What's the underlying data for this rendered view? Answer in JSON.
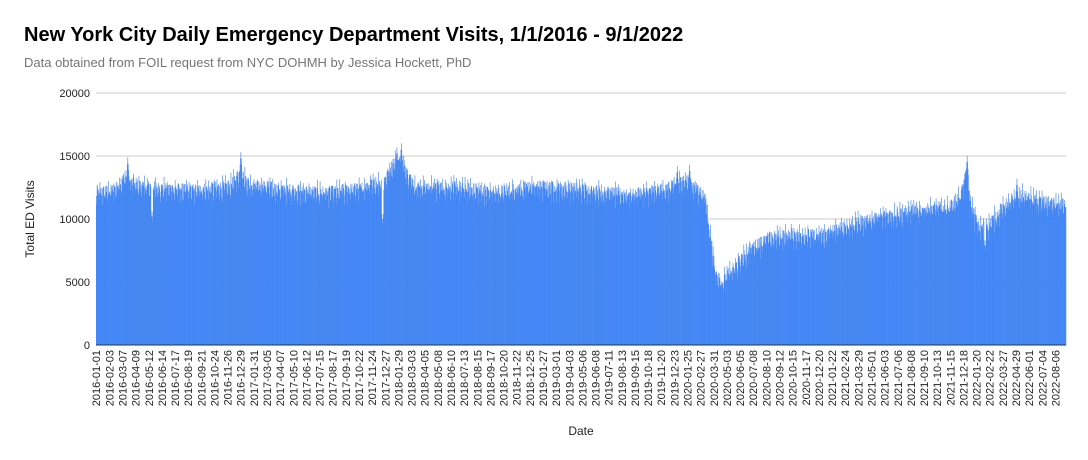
{
  "chart_data": {
    "type": "bar",
    "title": "New York City Daily Emergency Department Visits, 1/1/2016 - 9/1/2022",
    "subtitle": "Data obtained from FOIL request from NYC DOHMH by Jessica Hockett, PhD",
    "xlabel": "Date",
    "ylabel": "Total ED Visits",
    "ylim": [
      0,
      20000
    ],
    "yticks": [
      0,
      5000,
      10000,
      15000,
      20000
    ],
    "grid": true,
    "legend": "none",
    "bar_color": "#4285f4",
    "x_range": [
      "2016-01-01",
      "2022-09-01"
    ],
    "x_tick_labels": [
      "2016-01-01",
      "2016-02-03",
      "2016-03-07",
      "2016-04-09",
      "2016-05-12",
      "2016-06-14",
      "2016-07-17",
      "2016-08-19",
      "2016-09-21",
      "2016-10-24",
      "2016-11-26",
      "2016-12-29",
      "2017-01-31",
      "2017-03-05",
      "2017-04-07",
      "2017-05-10",
      "2017-06-12",
      "2017-07-15",
      "2017-08-17",
      "2017-09-19",
      "2017-10-22",
      "2017-11-24",
      "2017-12-27",
      "2018-01-29",
      "2018-03-03",
      "2018-04-05",
      "2018-05-08",
      "2018-06-10",
      "2018-07-13",
      "2018-08-15",
      "2018-09-17",
      "2018-10-20",
      "2018-11-22",
      "2018-12-25",
      "2019-01-27",
      "2019-03-01",
      "2019-04-03",
      "2019-05-06",
      "2019-06-08",
      "2019-07-11",
      "2019-08-13",
      "2019-09-15",
      "2019-10-18",
      "2019-11-20",
      "2019-12-23",
      "2020-01-25",
      "2020-02-27",
      "2020-03-31",
      "2020-05-03",
      "2020-06-05",
      "2020-07-08",
      "2020-08-10",
      "2020-09-12",
      "2020-10-15",
      "2020-11-17",
      "2020-12-20",
      "2021-01-22",
      "2021-02-24",
      "2021-03-29",
      "2021-05-01",
      "2021-06-03",
      "2021-07-06",
      "2021-08-08",
      "2021-09-10",
      "2021-10-13",
      "2021-11-15",
      "2021-12-18",
      "2022-01-20",
      "2022-02-22",
      "2022-03-27",
      "2022-04-29",
      "2022-06-01",
      "2022-07-04",
      "2022-08-06"
    ],
    "baseline_series": {
      "name": "",
      "points": [
        {
          "x": "2016-01-01",
          "y": 12000
        },
        {
          "x": "2016-02-15",
          "y": 12200
        },
        {
          "x": "2016-03-10",
          "y": 13200
        },
        {
          "x": "2016-04-10",
          "y": 12600
        },
        {
          "x": "2016-06-01",
          "y": 12400
        },
        {
          "x": "2016-09-01",
          "y": 12200
        },
        {
          "x": "2016-12-01",
          "y": 12500
        },
        {
          "x": "2016-12-27",
          "y": 13600
        },
        {
          "x": "2017-01-20",
          "y": 12700
        },
        {
          "x": "2017-04-01",
          "y": 12300
        },
        {
          "x": "2017-08-01",
          "y": 12000
        },
        {
          "x": "2017-11-01",
          "y": 12400
        },
        {
          "x": "2017-12-25",
          "y": 13000
        },
        {
          "x": "2018-01-20",
          "y": 14600
        },
        {
          "x": "2018-02-10",
          "y": 14300
        },
        {
          "x": "2018-03-10",
          "y": 12500
        },
        {
          "x": "2018-06-01",
          "y": 12500
        },
        {
          "x": "2018-10-01",
          "y": 12000
        },
        {
          "x": "2019-01-01",
          "y": 12500
        },
        {
          "x": "2019-05-01",
          "y": 12300
        },
        {
          "x": "2019-09-01",
          "y": 11800
        },
        {
          "x": "2019-12-15",
          "y": 12400
        },
        {
          "x": "2020-01-15",
          "y": 13100
        },
        {
          "x": "2020-02-20",
          "y": 12300
        },
        {
          "x": "2020-03-10",
          "y": 11500
        },
        {
          "x": "2020-03-25",
          "y": 8000
        },
        {
          "x": "2020-04-05",
          "y": 5400
        },
        {
          "x": "2020-04-20",
          "y": 5000
        },
        {
          "x": "2020-05-20",
          "y": 6000
        },
        {
          "x": "2020-07-01",
          "y": 7600
        },
        {
          "x": "2020-08-15",
          "y": 8400
        },
        {
          "x": "2020-10-15",
          "y": 8700
        },
        {
          "x": "2020-12-20",
          "y": 8600
        },
        {
          "x": "2021-01-15",
          "y": 8900
        },
        {
          "x": "2021-03-15",
          "y": 9500
        },
        {
          "x": "2021-06-01",
          "y": 10200
        },
        {
          "x": "2021-09-01",
          "y": 10700
        },
        {
          "x": "2021-11-15",
          "y": 10900
        },
        {
          "x": "2021-12-10",
          "y": 11800
        },
        {
          "x": "2021-12-25",
          "y": 13500
        },
        {
          "x": "2022-01-05",
          "y": 11200
        },
        {
          "x": "2022-01-25",
          "y": 9200
        },
        {
          "x": "2022-02-20",
          "y": 9500
        },
        {
          "x": "2022-04-01",
          "y": 11000
        },
        {
          "x": "2022-05-15",
          "y": 11800
        },
        {
          "x": "2022-07-01",
          "y": 11300
        },
        {
          "x": "2022-09-01",
          "y": 11000
        }
      ]
    },
    "peaks": [
      {
        "x": "2016-03-20",
        "y": 14900
      },
      {
        "x": "2016-12-29",
        "y": 15300
      },
      {
        "x": "2018-01-25",
        "y": 15700
      },
      {
        "x": "2018-02-05",
        "y": 16000
      },
      {
        "x": "2019-12-30",
        "y": 14200
      },
      {
        "x": "2020-01-30",
        "y": 14300
      },
      {
        "x": "2021-12-27",
        "y": 15000
      },
      {
        "x": "2022-05-01",
        "y": 13200
      }
    ],
    "lows": [
      {
        "x": "2020-04-20",
        "y": 4600
      },
      {
        "x": "2016-05-20",
        "y": 9800
      },
      {
        "x": "2017-12-20",
        "y": 9600
      },
      {
        "x": "2022-02-10",
        "y": 7500
      }
    ]
  }
}
